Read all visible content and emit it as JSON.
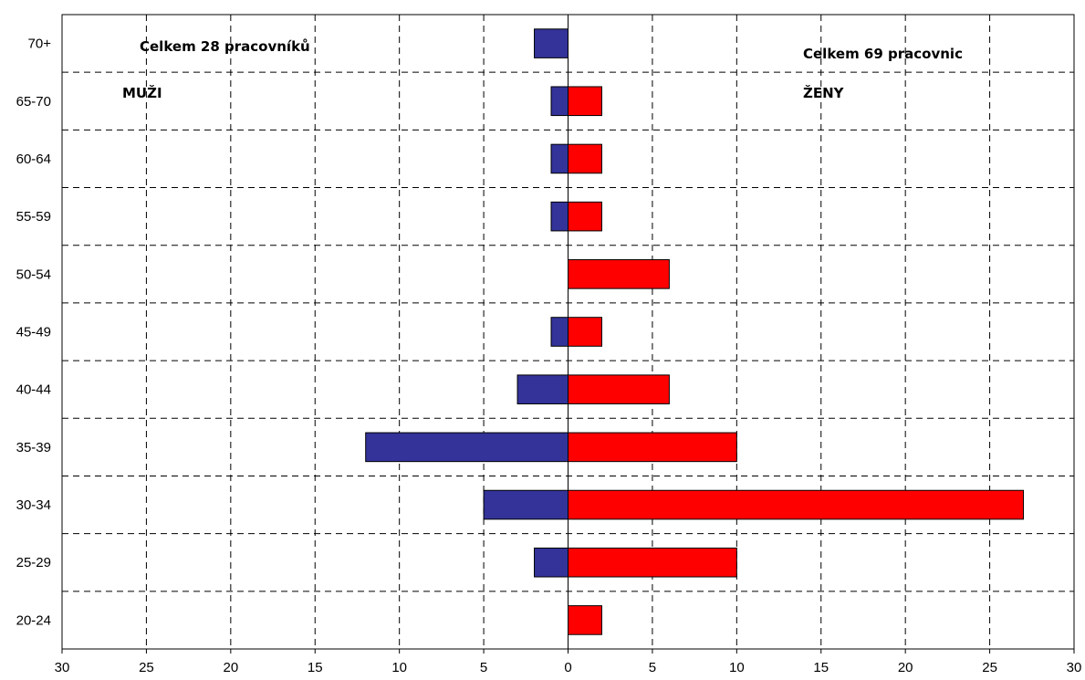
{
  "chart_data": {
    "type": "bar",
    "orientation": "horizontal",
    "layout": "population-pyramid",
    "categories": [
      "20-24",
      "25-29",
      "30-34",
      "35-39",
      "40-44",
      "45-49",
      "50-54",
      "55-59",
      "60-64",
      "65-70",
      "70+"
    ],
    "series": [
      {
        "name": "MUŽI",
        "side": "left",
        "color": "#333399",
        "values": [
          0,
          2,
          5,
          12,
          3,
          1,
          0,
          1,
          1,
          1,
          2
        ]
      },
      {
        "name": "ŽENY",
        "side": "right",
        "color": "#ff0000",
        "values": [
          2,
          10,
          27,
          10,
          6,
          2,
          6,
          2,
          2,
          2,
          0
        ]
      }
    ],
    "xlim": [
      -30,
      30
    ],
    "xticks": [
      -30,
      -25,
      -20,
      -15,
      -10,
      -5,
      0,
      5,
      10,
      15,
      20,
      25,
      30
    ],
    "xtick_labels": [
      "30",
      "25",
      "20",
      "15",
      "10",
      "5",
      "0",
      "5",
      "10",
      "15",
      "20",
      "25",
      "30"
    ],
    "grid": true,
    "legend": "none",
    "annotations": {
      "men_total": "Celkem 28 pracovníků",
      "men_label": "MUŽI",
      "women_total": "Celkem 69 pracovnic",
      "women_label": "ŽENY"
    },
    "title": "",
    "xlabel": "",
    "ylabel": ""
  }
}
